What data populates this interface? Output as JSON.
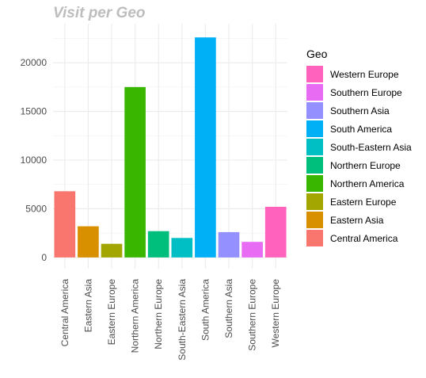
{
  "chart_data": {
    "type": "bar",
    "title": "Visit per Geo",
    "xlabel": "",
    "ylabel": "",
    "categories": [
      "Central America",
      "Eastern Asia",
      "Eastern Europe",
      "Northern America",
      "Northern Europe",
      "South-Eastern Asia",
      "South America",
      "Southern Asia",
      "Southern Europe",
      "Western Europe"
    ],
    "values": [
      6800,
      3200,
      1400,
      17500,
      2700,
      2000,
      22600,
      2600,
      1600,
      5200
    ],
    "colors": [
      "#F8766D",
      "#D89000",
      "#A3A500",
      "#39B600",
      "#00BF7D",
      "#00BFC4",
      "#00B0F6",
      "#9590FF",
      "#E76BF3",
      "#FF62BC"
    ],
    "ylim": [
      -1150,
      24000
    ],
    "yticks": [
      0,
      5000,
      10000,
      15000,
      20000
    ],
    "grid": true,
    "legend_position": "right",
    "legend": {
      "title": "Geo",
      "entries": [
        "Western Europe",
        "Southern Europe",
        "Southern Asia",
        "South America",
        "South-Eastern Asia",
        "Northern Europe",
        "Northern America",
        "Eastern Europe",
        "Eastern Asia",
        "Central America"
      ],
      "colors": [
        "#FF62BC",
        "#E76BF3",
        "#9590FF",
        "#00B0F6",
        "#00BFC4",
        "#00BF7D",
        "#39B600",
        "#A3A500",
        "#D89000",
        "#F8766D"
      ]
    }
  }
}
